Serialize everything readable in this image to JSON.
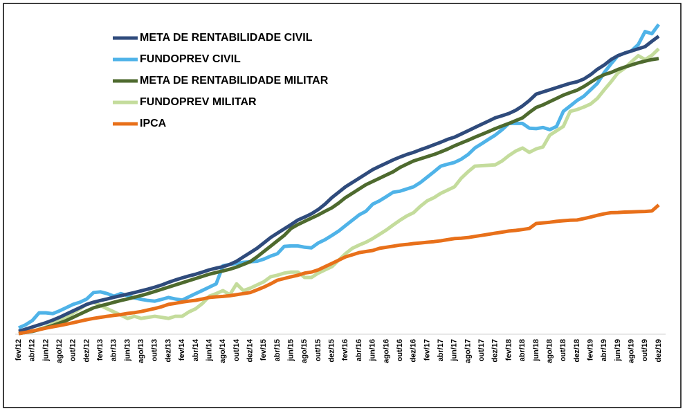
{
  "chart_data": {
    "type": "line",
    "categories": [
      "fev/12",
      null,
      "abr/12",
      null,
      "jun/12",
      null,
      "ago/12",
      null,
      "out/12",
      null,
      "dez/12",
      null,
      "fev/13",
      null,
      "abr/13",
      null,
      "jun/13",
      null,
      "ago/13",
      null,
      "out/13",
      null,
      "dez/13",
      null,
      "fev/14",
      null,
      "abr/14",
      null,
      "jun/14",
      null,
      "ago/14",
      null,
      "out/14",
      null,
      "dez/14",
      null,
      "fev/15",
      null,
      "abr/15",
      null,
      "jun/15",
      null,
      "ago/15",
      null,
      "out/15",
      null,
      "dez/15",
      null,
      "fev/16",
      null,
      "abr/16",
      null,
      "jun/16",
      null,
      "ago/16",
      null,
      "out/16",
      null,
      "dez/16",
      null,
      "fev/17",
      null,
      "abr/17",
      null,
      "jun/17",
      null,
      "ago/17",
      null,
      "out/17",
      null,
      "dez/17",
      null,
      "fev/18",
      null,
      "abr/18",
      null,
      "jun/18",
      null,
      "ago/18",
      null,
      "out/18",
      null,
      "dez/18",
      null,
      "fev/19",
      null,
      "abr/19",
      null,
      "jun/19",
      null,
      "ago/19",
      null,
      "out/19",
      null,
      "dez/19"
    ],
    "ylim": [
      0,
      145
    ],
    "series": [
      {
        "name": "META DE RENTABILIDADE CIVIL",
        "color": "#2f4b7c",
        "values": [
          1,
          2,
          3,
          4,
          5,
          6.2,
          7.5,
          9,
          10.5,
          12,
          13.5,
          14.5,
          15.3,
          16,
          16.8,
          17.5,
          18.3,
          19,
          19.8,
          20.6,
          21.5,
          22.5,
          23.7,
          24.8,
          25.8,
          26.7,
          27.5,
          28.5,
          29.5,
          30.3,
          31,
          32,
          33.5,
          35.5,
          37.5,
          39.5,
          42,
          44.5,
          46.5,
          48.5,
          50.5,
          52.6,
          54,
          55.5,
          57.5,
          60,
          63,
          65.5,
          68,
          70,
          72,
          74,
          76,
          77.5,
          79,
          80.5,
          81.8,
          83,
          84,
          85.2,
          86.3,
          87.5,
          88.7,
          90,
          91,
          92.5,
          94,
          95.5,
          97,
          98.5,
          100,
          101,
          102,
          103.5,
          105.5,
          108,
          111,
          112,
          113,
          114,
          115,
          116,
          116.7,
          118,
          120,
          122.5,
          124.5,
          127,
          128.8,
          130,
          131,
          132,
          133,
          135.5,
          137.8
        ]
      },
      {
        "name": "FUNDOPREV CIVIL",
        "color": "#4fb3e8",
        "values": [
          2.6,
          4,
          6,
          9.6,
          9.6,
          9.2,
          10.5,
          12,
          13.5,
          14.5,
          16,
          19,
          19.3,
          18.5,
          17.3,
          18.5,
          17.5,
          16.5,
          15.8,
          15.3,
          15,
          15.8,
          16.7,
          16,
          15.5,
          17,
          18.5,
          20,
          21.5,
          23,
          31.4,
          32,
          32.5,
          33,
          33.3,
          33.5,
          34.5,
          35.9,
          37,
          40.4,
          40.6,
          40.6,
          40,
          39.7,
          42,
          43.5,
          45.5,
          47.5,
          50,
          52.5,
          55,
          56.7,
          60,
          61.5,
          63.5,
          65.5,
          66,
          67,
          68,
          70,
          72.5,
          75,
          77.6,
          78.5,
          79.3,
          80.8,
          83,
          86,
          88,
          90,
          92,
          94.5,
          97.4,
          97.4,
          97.4,
          95.2,
          95,
          95.5,
          94.5,
          96,
          103,
          105.5,
          108,
          110,
          113,
          116,
          121,
          125,
          128.8,
          130,
          131,
          134,
          140,
          139,
          143.3
        ]
      },
      {
        "name": "META DE RENTABILIDADE MILITAR",
        "color": "#4e6a2e",
        "values": [
          0,
          0.5,
          1,
          1.8,
          2.7,
          3.7,
          4.8,
          6,
          7.5,
          9,
          10.5,
          11.9,
          12.8,
          13.6,
          14.5,
          15.3,
          16,
          16.8,
          17.6,
          18.5,
          19.5,
          20.5,
          21.5,
          22.5,
          23.5,
          24.5,
          25.5,
          26.5,
          27.5,
          28.3,
          29,
          29.8,
          30.8,
          32,
          33.3,
          35.5,
          38,
          40.5,
          43,
          45.5,
          48.7,
          50.5,
          52,
          53.5,
          55,
          56.7,
          58.3,
          60.5,
          63,
          65,
          67,
          69,
          70.5,
          72,
          73.5,
          75,
          77,
          78.5,
          80,
          81,
          82,
          83,
          84.2,
          85.5,
          87,
          88.3,
          89.6,
          91,
          92.3,
          93.6,
          95,
          96.2,
          97.4,
          98.7,
          100,
          102.5,
          104.8,
          106,
          107.5,
          109,
          110.5,
          111.7,
          112.8,
          114.5,
          116.5,
          118.5,
          120,
          121,
          122.4,
          123.5,
          124.5,
          125.5,
          126.3,
          127,
          127.5
        ]
      },
      {
        "name": "FUNDOPREV MILITAR",
        "color": "#c4dc9c",
        "values": [
          0,
          0.5,
          1,
          2,
          3,
          4.5,
          6,
          7.5,
          9.5,
          11.5,
          13.5,
          14.5,
          13,
          11.5,
          10,
          8.5,
          7,
          8,
          7,
          7.5,
          8,
          7.5,
          7,
          8,
          8,
          10,
          11.5,
          14,
          17.3,
          18.5,
          19.9,
          18,
          23,
          19.9,
          21,
          22.5,
          24,
          26.3,
          27,
          28,
          28.5,
          28.5,
          26,
          26,
          28,
          29.5,
          31,
          34,
          37,
          39.5,
          41,
          42.3,
          44,
          46,
          48,
          50.3,
          52.5,
          54.5,
          56,
          59,
          61.5,
          63,
          65,
          66.5,
          68,
          72,
          75,
          77.6,
          77.8,
          78,
          78.2,
          80,
          82.5,
          84.6,
          86,
          84,
          85.6,
          86.5,
          92,
          94,
          96,
          103,
          103.8,
          105,
          106.4,
          109,
          113,
          116.7,
          120.8,
          123,
          126,
          128.8,
          127,
          129,
          132
        ]
      },
      {
        "name": "IPCA",
        "color": "#e8701a",
        "values": [
          0,
          0.5,
          1.2,
          1.8,
          2.5,
          3.1,
          3.7,
          4.3,
          5.0,
          5.7,
          6.4,
          7.0,
          7.5,
          8.0,
          8.4,
          8.8,
          9.3,
          9.7,
          10.2,
          10.9,
          11.6,
          12.4,
          13.5,
          14.0,
          14.6,
          15.0,
          15.4,
          16.0,
          16.7,
          17.0,
          17.2,
          17.5,
          18.0,
          18.5,
          19.0,
          20.2,
          21.5,
          23.0,
          24.7,
          25.5,
          26.3,
          27.0,
          28.0,
          28.5,
          29.5,
          31.0,
          32.5,
          34.0,
          35.5,
          36.5,
          37.5,
          38.0,
          38.5,
          39.5,
          40.0,
          40.5,
          41.0,
          41.3,
          41.7,
          42.0,
          42.3,
          42.6,
          43.0,
          43.5,
          44.0,
          44.2,
          44.5,
          45.0,
          45.5,
          46.0,
          46.5,
          47.0,
          47.5,
          47.8,
          48.2,
          48.7,
          51.0,
          51.3,
          51.6,
          52.0,
          52.3,
          52.5,
          52.6,
          53.3,
          54.0,
          54.8,
          55.5,
          56.0,
          56.1,
          56.3,
          56.4,
          56.5,
          56.6,
          56.8,
          59.6
        ]
      }
    ]
  }
}
